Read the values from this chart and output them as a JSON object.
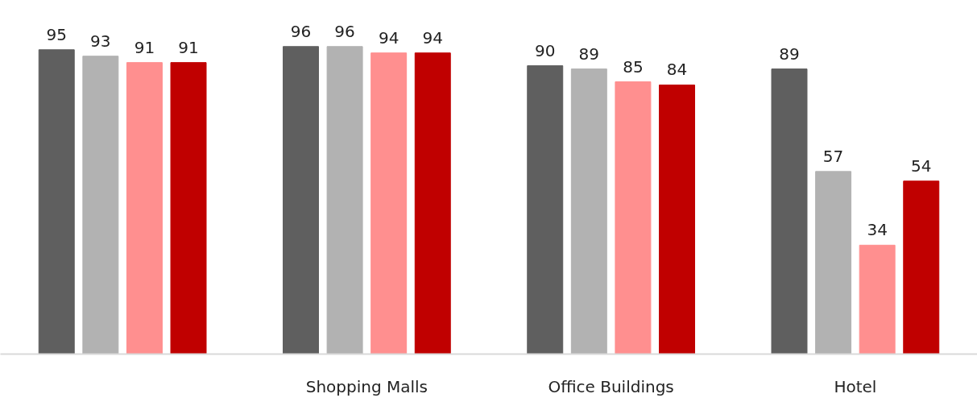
{
  "chart_data": {
    "type": "bar",
    "categories": [
      null,
      "Shopping Malls",
      "Office Buildings",
      "Hotel"
    ],
    "series": [
      {
        "color": "#5f5f5f",
        "values": [
          95,
          96,
          90,
          89
        ]
      },
      {
        "color": "#b2b2b2",
        "values": [
          93,
          96,
          89,
          57
        ]
      },
      {
        "color": "#ff8f8f",
        "values": [
          91,
          94,
          85,
          34
        ]
      },
      {
        "color": "#c00000",
        "values": [
          91,
          94,
          84,
          54
        ]
      }
    ],
    "data_labels": true
  }
}
